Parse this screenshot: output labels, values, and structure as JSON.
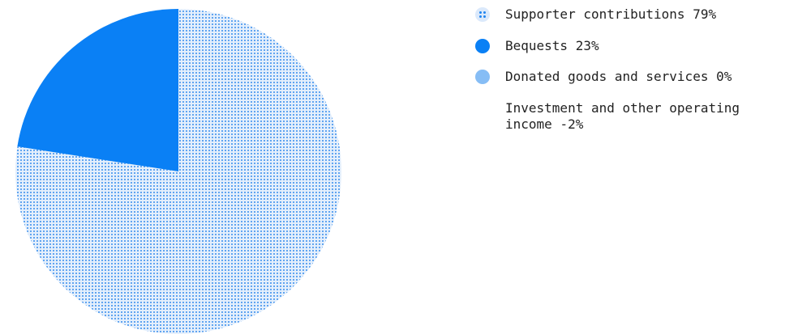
{
  "chart_data": {
    "type": "pie",
    "slices": [
      {
        "label": "Supporter contributions",
        "value": 79,
        "value_label": "79%",
        "color": "#1e84f0",
        "fill": "dotted"
      },
      {
        "label": "Bequests",
        "value": 23,
        "value_label": "23%",
        "color": "#0a80f5",
        "fill": "solid"
      },
      {
        "label": "Donated goods and services",
        "value": 0,
        "value_label": "0%",
        "color": "#86bdf5",
        "fill": "solid"
      },
      {
        "label": "Investment and other operating income",
        "value": -2,
        "value_label": "-2%",
        "color": "",
        "fill": "none"
      }
    ],
    "title": "",
    "legend_position": "right"
  }
}
